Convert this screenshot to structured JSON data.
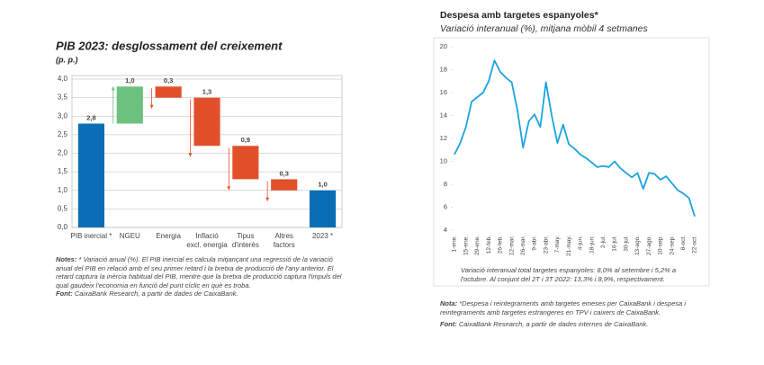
{
  "chart_data": [
    {
      "type": "waterfall",
      "title": "PIB 2023: desglossament del creixement",
      "subtitle": "(p. p.)",
      "categories": [
        "PIB inercial *",
        "NGEU",
        "Energia",
        "Inflació\nexcl. energia",
        "Tipus\nd'interès",
        "Altres\nfactors",
        "2023 *"
      ],
      "values": [
        2.8,
        1.0,
        -0.3,
        -1.3,
        -0.9,
        -0.3,
        1.0
      ],
      "value_labels": [
        "2,8",
        "1,0",
        "0,3",
        "1,3",
        "0,9",
        "0,3",
        "1,0"
      ],
      "colors": [
        "#0a6eb4",
        "#6cc17f",
        "#e2502a",
        "#e2502a",
        "#e2502a",
        "#e2502a",
        "#0a6eb4"
      ],
      "ylim": [
        0,
        4
      ],
      "yticks": [
        {
          "value": 0,
          "label": "0,0"
        },
        {
          "value": 0.5,
          "label": "0,5"
        },
        {
          "value": 1,
          "label": "1,0"
        },
        {
          "value": 1.5,
          "label": "1,5"
        },
        {
          "value": 2,
          "label": "2,0"
        },
        {
          "value": 2.5,
          "label": "2,5"
        },
        {
          "value": 3,
          "label": "3,0"
        },
        {
          "value": 3.5,
          "label": "3,5"
        },
        {
          "value": 4,
          "label": "4,0"
        }
      ],
      "grid": true,
      "notes_label": "Notes:",
      "notes": "* Variació anual (%). El PIB inercial es calcula mitjançant una regressió de la variació anual del PIB en relació amb el seu primer retard i la bretxa de producció de l'any anterior. El retard captura la inèrcia habitual del PIB, mentre que la bretxa de producció captura l'impuls del qual gaudeix l'economia en funció del punt cíclic en què es troba.",
      "source_label": "Font:",
      "source": "CaixaBank Research, a partir de dades de CaixaBank."
    },
    {
      "type": "line",
      "title": "Despesa amb targetes espanyoles*",
      "subtitle": "Variació interanual (%), mitjana mòbil 4 setmanes",
      "categories": [
        "1-ene.",
        null,
        "15-ene.",
        null,
        "29-ene.",
        null,
        "12-feb.",
        null,
        "26-feb.",
        null,
        "12-mar.",
        null,
        "26-mar.",
        null,
        "9-abr.",
        null,
        "23-abr.",
        null,
        "7-may.",
        null,
        "21-may.",
        null,
        "4-jun.",
        null,
        "18-jun.",
        null,
        "2-jul.",
        null,
        "16-jul.",
        null,
        "30-jul.",
        null,
        "13-ago.",
        null,
        "27-ago.",
        null,
        "10-sep.",
        null,
        "24-sep.",
        null,
        "8-oct.",
        null,
        "22-oct."
      ],
      "values": [
        10.6,
        11.6,
        13.0,
        15.2,
        15.6,
        16.0,
        17.0,
        18.8,
        17.8,
        17.3,
        16.9,
        14.5,
        11.2,
        13.5,
        14.1,
        13.0,
        16.9,
        14.0,
        11.6,
        13.2,
        11.5,
        11.1,
        10.6,
        10.3,
        9.9,
        9.5,
        9.6,
        9.5,
        10.0,
        9.4,
        9.0,
        8.6,
        9.0,
        7.6,
        9.0,
        8.9,
        8.4,
        8.7,
        8.1,
        7.5,
        7.2,
        6.8,
        5.2
      ],
      "color": "#1ba3e0",
      "ylim": [
        4,
        20
      ],
      "yticks": [
        4,
        6,
        8,
        10,
        12,
        14,
        16,
        18,
        20
      ],
      "annotation": "Variació interanual total targetes espanyoles: 8,0% al setembre i 5,2% a l'octubre. Al conjunt del 2T i 3T 2022: 13,3% i 8,9%, respectivament.",
      "notes_label": "Nota:",
      "notes": "*Despesa i reintegraments amb targetes emeses per CaixaBank i despesa i reintegraments amb targetes estrangeres en TPV i caixers de CaixaBank.",
      "source_label": "Font:",
      "source": "CaixaBank Research, a partir de dades internes de CaixaBank."
    }
  ]
}
